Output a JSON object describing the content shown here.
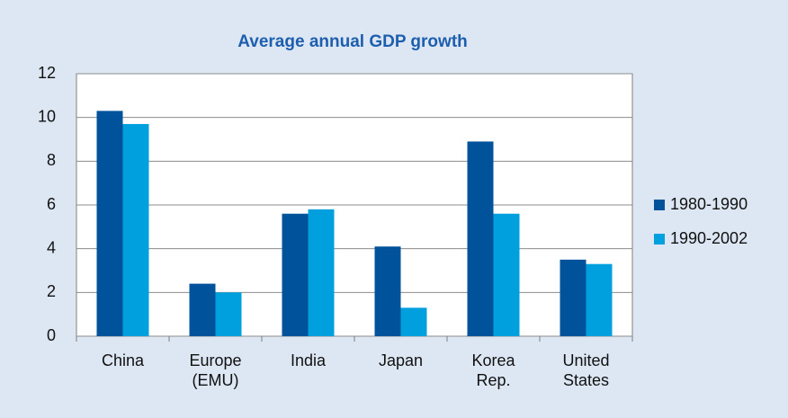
{
  "chart_data": {
    "type": "bar",
    "title": "Average annual GDP growth",
    "categories": [
      "China",
      "Europe\n(EMU)",
      "India",
      "Japan",
      "Korea\nRep.",
      "United\nStates"
    ],
    "series": [
      {
        "name": "1980-1990",
        "color": "#00539b",
        "values": [
          10.3,
          2.4,
          5.6,
          4.1,
          8.9,
          3.5
        ]
      },
      {
        "name": "1990-2002",
        "color": "#00a0df",
        "values": [
          9.7,
          2.0,
          5.8,
          1.3,
          5.6,
          3.3
        ]
      }
    ],
    "ylim": [
      0,
      12
    ],
    "yticks": [
      0,
      2,
      4,
      6,
      8,
      10,
      12
    ],
    "grid": true,
    "legend": "right"
  }
}
